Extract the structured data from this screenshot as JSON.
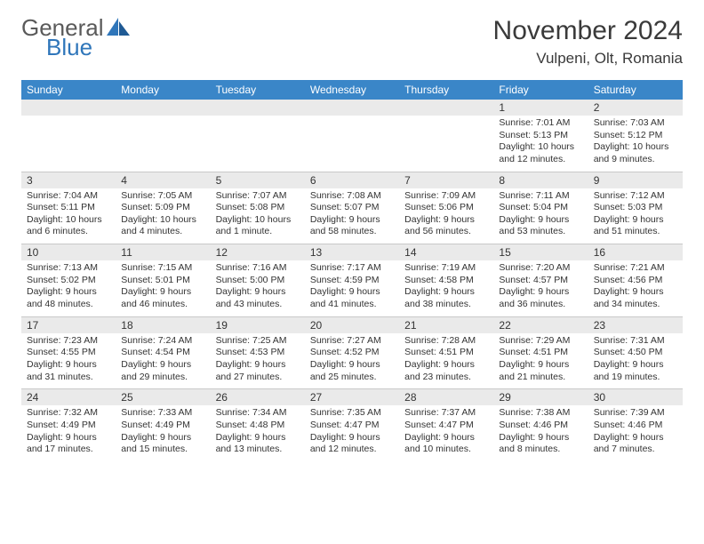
{
  "logo": {
    "general": "General",
    "blue": "Blue"
  },
  "title": "November 2024",
  "location": "Vulpeni, Olt, Romania",
  "colors": {
    "header_bg": "#3a86c8",
    "header_text": "#ffffff",
    "daynum_bg": "#eaeaea",
    "border": "#c9c9c9",
    "text": "#333333",
    "logo_gray": "#5a5a5a",
    "logo_blue": "#2f76ba"
  },
  "weekdays": [
    "Sunday",
    "Monday",
    "Tuesday",
    "Wednesday",
    "Thursday",
    "Friday",
    "Saturday"
  ],
  "weeks": [
    [
      null,
      null,
      null,
      null,
      null,
      {
        "day": "1",
        "sunrise": "7:01 AM",
        "sunset": "5:13 PM",
        "daylight": "10 hours and 12 minutes."
      },
      {
        "day": "2",
        "sunrise": "7:03 AM",
        "sunset": "5:12 PM",
        "daylight": "10 hours and 9 minutes."
      }
    ],
    [
      {
        "day": "3",
        "sunrise": "7:04 AM",
        "sunset": "5:11 PM",
        "daylight": "10 hours and 6 minutes."
      },
      {
        "day": "4",
        "sunrise": "7:05 AM",
        "sunset": "5:09 PM",
        "daylight": "10 hours and 4 minutes."
      },
      {
        "day": "5",
        "sunrise": "7:07 AM",
        "sunset": "5:08 PM",
        "daylight": "10 hours and 1 minute."
      },
      {
        "day": "6",
        "sunrise": "7:08 AM",
        "sunset": "5:07 PM",
        "daylight": "9 hours and 58 minutes."
      },
      {
        "day": "7",
        "sunrise": "7:09 AM",
        "sunset": "5:06 PM",
        "daylight": "9 hours and 56 minutes."
      },
      {
        "day": "8",
        "sunrise": "7:11 AM",
        "sunset": "5:04 PM",
        "daylight": "9 hours and 53 minutes."
      },
      {
        "day": "9",
        "sunrise": "7:12 AM",
        "sunset": "5:03 PM",
        "daylight": "9 hours and 51 minutes."
      }
    ],
    [
      {
        "day": "10",
        "sunrise": "7:13 AM",
        "sunset": "5:02 PM",
        "daylight": "9 hours and 48 minutes."
      },
      {
        "day": "11",
        "sunrise": "7:15 AM",
        "sunset": "5:01 PM",
        "daylight": "9 hours and 46 minutes."
      },
      {
        "day": "12",
        "sunrise": "7:16 AM",
        "sunset": "5:00 PM",
        "daylight": "9 hours and 43 minutes."
      },
      {
        "day": "13",
        "sunrise": "7:17 AM",
        "sunset": "4:59 PM",
        "daylight": "9 hours and 41 minutes."
      },
      {
        "day": "14",
        "sunrise": "7:19 AM",
        "sunset": "4:58 PM",
        "daylight": "9 hours and 38 minutes."
      },
      {
        "day": "15",
        "sunrise": "7:20 AM",
        "sunset": "4:57 PM",
        "daylight": "9 hours and 36 minutes."
      },
      {
        "day": "16",
        "sunrise": "7:21 AM",
        "sunset": "4:56 PM",
        "daylight": "9 hours and 34 minutes."
      }
    ],
    [
      {
        "day": "17",
        "sunrise": "7:23 AM",
        "sunset": "4:55 PM",
        "daylight": "9 hours and 31 minutes."
      },
      {
        "day": "18",
        "sunrise": "7:24 AM",
        "sunset": "4:54 PM",
        "daylight": "9 hours and 29 minutes."
      },
      {
        "day": "19",
        "sunrise": "7:25 AM",
        "sunset": "4:53 PM",
        "daylight": "9 hours and 27 minutes."
      },
      {
        "day": "20",
        "sunrise": "7:27 AM",
        "sunset": "4:52 PM",
        "daylight": "9 hours and 25 minutes."
      },
      {
        "day": "21",
        "sunrise": "7:28 AM",
        "sunset": "4:51 PM",
        "daylight": "9 hours and 23 minutes."
      },
      {
        "day": "22",
        "sunrise": "7:29 AM",
        "sunset": "4:51 PM",
        "daylight": "9 hours and 21 minutes."
      },
      {
        "day": "23",
        "sunrise": "7:31 AM",
        "sunset": "4:50 PM",
        "daylight": "9 hours and 19 minutes."
      }
    ],
    [
      {
        "day": "24",
        "sunrise": "7:32 AM",
        "sunset": "4:49 PM",
        "daylight": "9 hours and 17 minutes."
      },
      {
        "day": "25",
        "sunrise": "7:33 AM",
        "sunset": "4:49 PM",
        "daylight": "9 hours and 15 minutes."
      },
      {
        "day": "26",
        "sunrise": "7:34 AM",
        "sunset": "4:48 PM",
        "daylight": "9 hours and 13 minutes."
      },
      {
        "day": "27",
        "sunrise": "7:35 AM",
        "sunset": "4:47 PM",
        "daylight": "9 hours and 12 minutes."
      },
      {
        "day": "28",
        "sunrise": "7:37 AM",
        "sunset": "4:47 PM",
        "daylight": "9 hours and 10 minutes."
      },
      {
        "day": "29",
        "sunrise": "7:38 AM",
        "sunset": "4:46 PM",
        "daylight": "9 hours and 8 minutes."
      },
      {
        "day": "30",
        "sunrise": "7:39 AM",
        "sunset": "4:46 PM",
        "daylight": "9 hours and 7 minutes."
      }
    ]
  ]
}
